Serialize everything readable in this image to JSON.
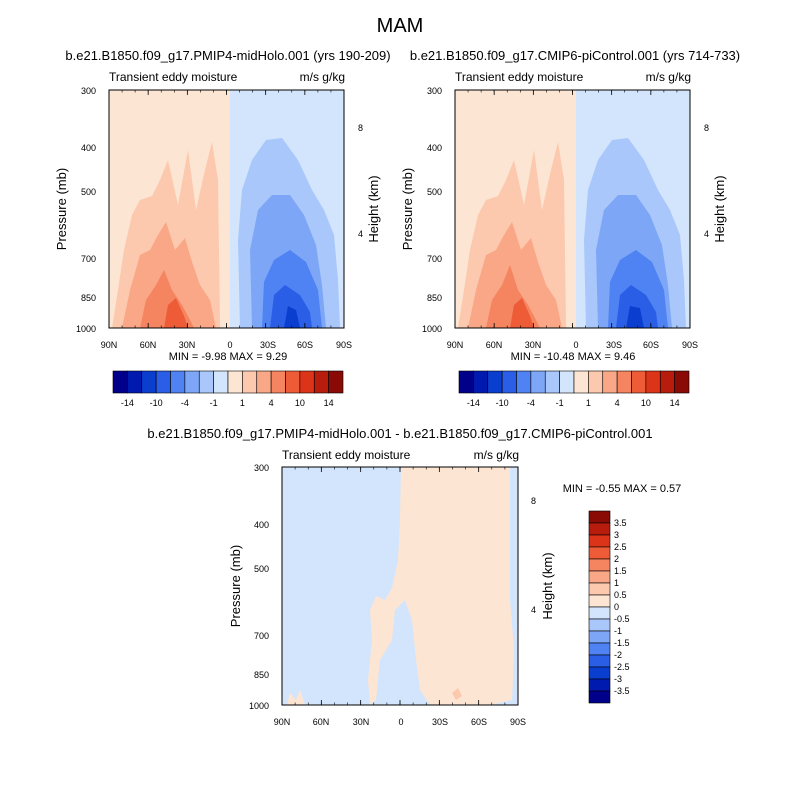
{
  "page_title": "MAM",
  "panels": [
    {
      "title": "b.e21.B1850.f09_g17.PMIP4-midHolo.001 (yrs 190-209)",
      "left_label": "Transient eddy moisture",
      "right_label": "m/s g/kg",
      "ylabel": "Pressure (mb)",
      "y2label": "Height (km)",
      "stats": "MIN =  -9.98  MAX =   9.29"
    },
    {
      "title": "b.e21.B1850.f09_g17.CMIP6-piControl.001 (yrs 714-733)",
      "left_label": "Transient eddy moisture",
      "right_label": "m/s g/kg",
      "ylabel": "Pressure (mb)",
      "y2label": "Height (km)",
      "stats": "MIN = -10.48  MAX =   9.46"
    },
    {
      "title": "b.e21.B1850.f09_g17.PMIP4-midHolo.001 - b.e21.B1850.f09_g17.CMIP6-piControl.001",
      "left_label": "Transient eddy moisture",
      "right_label": "m/s g/kg",
      "ylabel": "Pressure (mb)",
      "y2label": "Height (km)",
      "stats": "MIN =  -0.55  MAX =   0.57"
    }
  ],
  "chart_data": [
    {
      "type": "heatmap",
      "subtype": "filled-contour",
      "xticks": [
        "90N",
        "60N",
        "30N",
        "0",
        "30S",
        "60S",
        "90S"
      ],
      "yticks": [
        "300",
        "400",
        "500",
        "700",
        "850",
        "1000"
      ],
      "y2ticks": [
        "8",
        "4"
      ],
      "yscale": "log",
      "ylim": [
        1000,
        300
      ],
      "min": -9.98,
      "max": 9.29,
      "note": "positive (red) in northern hemisphere, negative (blue) in southern hemisphere; extremes near 1000-850 mb around 30N and 45S"
    },
    {
      "type": "heatmap",
      "subtype": "filled-contour",
      "xticks": [
        "90N",
        "60N",
        "30N",
        "0",
        "30S",
        "60S",
        "90S"
      ],
      "yticks": [
        "300",
        "400",
        "500",
        "700",
        "850",
        "1000"
      ],
      "y2ticks": [
        "8",
        "4"
      ],
      "yscale": "log",
      "ylim": [
        1000,
        300
      ],
      "min": -10.48,
      "max": 9.46
    },
    {
      "type": "heatmap",
      "subtype": "filled-contour",
      "xticks": [
        "90N",
        "60N",
        "30N",
        "0",
        "30S",
        "60S",
        "90S"
      ],
      "yticks": [
        "300",
        "400",
        "500",
        "700",
        "850",
        "1000"
      ],
      "y2ticks": [
        "8",
        "4"
      ],
      "yscale": "log",
      "ylim": [
        1000,
        300
      ],
      "min": -0.55,
      "max": 0.57
    }
  ],
  "colorbar_h": {
    "labels": [
      "-14",
      "-10",
      "-4",
      "-1",
      "1",
      "4",
      "10",
      "14"
    ],
    "colors": [
      "#00008a",
      "#001ab0",
      "#0a3ecf",
      "#2a5ee6",
      "#4f82f2",
      "#7da6f7",
      "#a9c7fa",
      "#d3e5fc",
      "#fde5d3",
      "#fcc8ae",
      "#f9a787",
      "#f58460",
      "#ee5b37",
      "#dc3418",
      "#b71c0c",
      "#8a0a05"
    ]
  },
  "colorbar_v": {
    "labels": [
      "3.5",
      "3",
      "2.5",
      "2",
      "1.5",
      "1",
      "0.5",
      "0",
      "-0.5",
      "-1",
      "-1.5",
      "-2",
      "-2.5",
      "-3",
      "-3.5"
    ],
    "colors": [
      "#8a0a05",
      "#b71c0c",
      "#dc3418",
      "#ee5b37",
      "#f58460",
      "#f9a787",
      "#fcc8ae",
      "#fde5d3",
      "#d3e5fc",
      "#a9c7fa",
      "#7da6f7",
      "#4f82f2",
      "#2a5ee6",
      "#0a3ecf",
      "#001ab0",
      "#00008a"
    ]
  }
}
